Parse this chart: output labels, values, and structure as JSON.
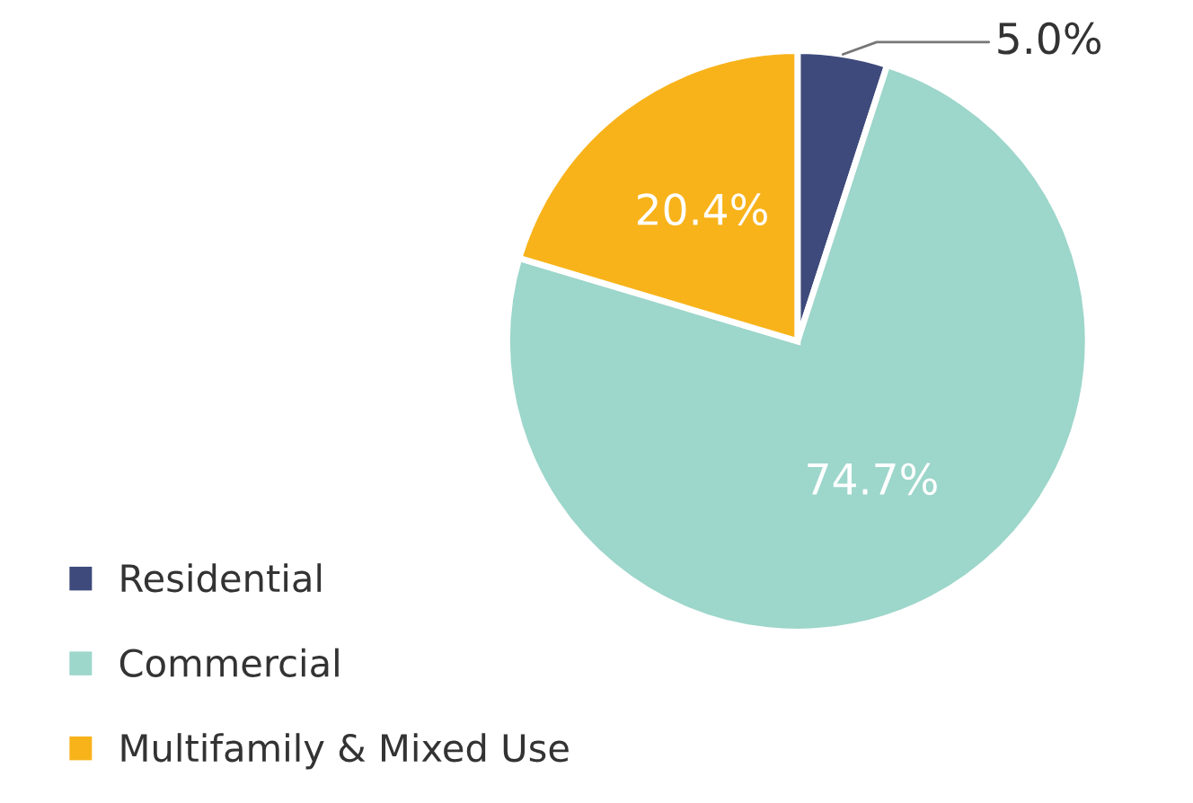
{
  "chart_data": {
    "type": "pie",
    "categories": [
      "Residential",
      "Commercial",
      "Multifamily & Mixed Use"
    ],
    "values": [
      5.0,
      74.7,
      20.4
    ],
    "colors": [
      "#3e4a7b",
      "#9dd6cb",
      "#f8b31b"
    ],
    "value_labels": [
      "5.0%",
      "74.7%",
      "20.4%"
    ],
    "legend": "bottom left"
  }
}
